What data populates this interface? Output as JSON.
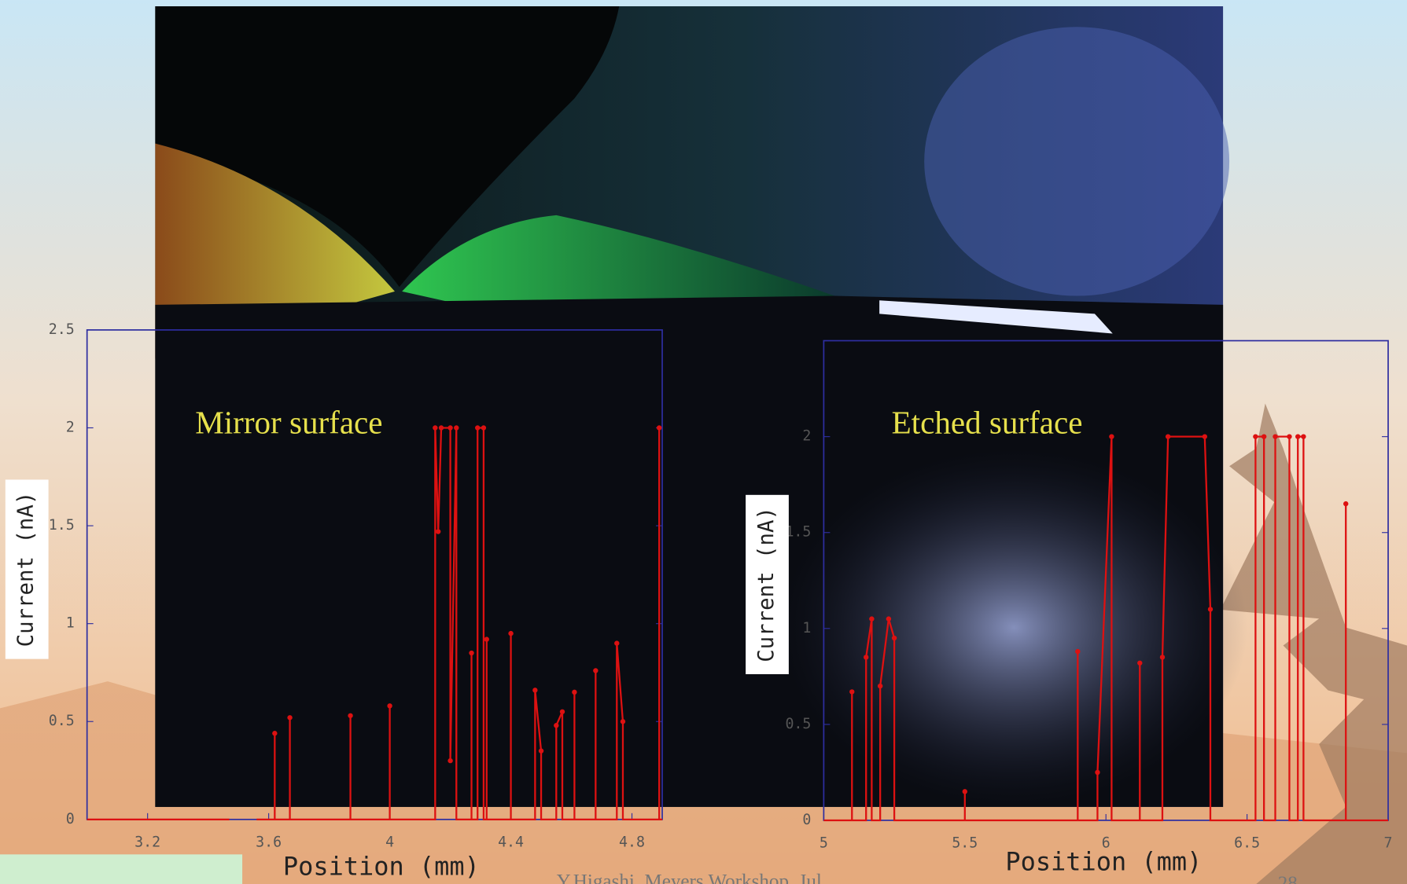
{
  "chart_data": [
    {
      "type": "line",
      "annotation": "Mirror surface",
      "xlabel": "Position (mm)",
      "ylabel": "Current (nA)",
      "xlim": [
        3.0,
        4.9
      ],
      "xticks": [
        3.2,
        3.6,
        4,
        4.4,
        4.8
      ],
      "ylim": [
        0,
        2.5
      ],
      "yticks": [
        0,
        0.5,
        1,
        1.5,
        2,
        2.5
      ],
      "series": [
        {
          "color": "#dd1111",
          "x": [
            3.0,
            3.47,
            3.51,
            3.56,
            3.62,
            3.62,
            3.62,
            3.67,
            3.67,
            3.67,
            3.87,
            3.87,
            3.87,
            4.0,
            4.0,
            4.0,
            4.15,
            4.15,
            4.16,
            4.17,
            4.2,
            4.2,
            4.22,
            4.22,
            4.27,
            4.27,
            4.27,
            4.29,
            4.29,
            4.31,
            4.31,
            4.32,
            4.32,
            4.32,
            4.4,
            4.4,
            4.4,
            4.48,
            4.48,
            4.5,
            4.5,
            4.55,
            4.55,
            4.57,
            4.57,
            4.61,
            4.61,
            4.61,
            4.68,
            4.68,
            4.68,
            4.75,
            4.75,
            4.77,
            4.77,
            4.89,
            4.89,
            4.89,
            4.9
          ],
          "values": [
            0,
            0,
            null,
            0,
            0,
            0.44,
            0,
            0,
            0.52,
            0,
            0,
            0.53,
            0,
            0,
            0.58,
            0,
            0,
            2.0,
            1.47,
            2.0,
            2.0,
            0.3,
            2.0,
            0,
            0,
            0.85,
            0,
            0,
            2.0,
            2.0,
            0,
            0,
            0.92,
            0,
            0,
            0.95,
            0,
            0,
            0.66,
            0.35,
            0,
            0,
            0.48,
            0.55,
            0,
            0,
            0.65,
            0,
            0,
            0.76,
            0,
            0,
            0.9,
            0.5,
            0,
            0,
            2.0,
            0,
            0
          ]
        }
      ]
    },
    {
      "type": "line",
      "annotation": "Etched surface",
      "xlabel": "Position (mm)",
      "ylabel": "Current (nA)",
      "xlim": [
        5,
        7
      ],
      "xticks": [
        5,
        5.5,
        6,
        6.5,
        7
      ],
      "ylim": [
        0,
        2.5
      ],
      "yticks": [
        0,
        0.5,
        1,
        1.5,
        2
      ],
      "series": [
        {
          "color": "#dd1111",
          "x": [
            5.0,
            5.1,
            5.1,
            5.1,
            5.15,
            5.15,
            5.17,
            5.17,
            5.2,
            5.2,
            5.23,
            5.25,
            5.25,
            5.5,
            5.5,
            5.5,
            5.9,
            5.9,
            5.9,
            5.97,
            5.97,
            6.02,
            6.02,
            6.12,
            6.12,
            6.12,
            6.2,
            6.2,
            6.22,
            6.35,
            6.37,
            6.37,
            6.53,
            6.53,
            6.56,
            6.56,
            6.6,
            6.6,
            6.65,
            6.65,
            6.68,
            6.68,
            6.7,
            6.7,
            6.85,
            6.85,
            6.85,
            7.0
          ],
          "values": [
            0,
            0,
            0.67,
            0,
            0,
            0.85,
            1.05,
            0,
            0,
            0.7,
            1.05,
            0.95,
            0,
            0,
            0.15,
            0,
            0,
            0.88,
            0,
            0,
            0.25,
            2.0,
            0,
            0,
            0.82,
            0,
            0,
            0.85,
            2.0,
            2.0,
            1.1,
            0,
            0,
            2.0,
            2.0,
            0,
            0,
            2.0,
            2.0,
            0,
            0,
            2.0,
            2.0,
            0,
            0,
            1.65,
            0,
            0
          ]
        }
      ]
    }
  ],
  "footer": "Y.Higashi, Meyers Workshop, Jul",
  "page_number": "28"
}
